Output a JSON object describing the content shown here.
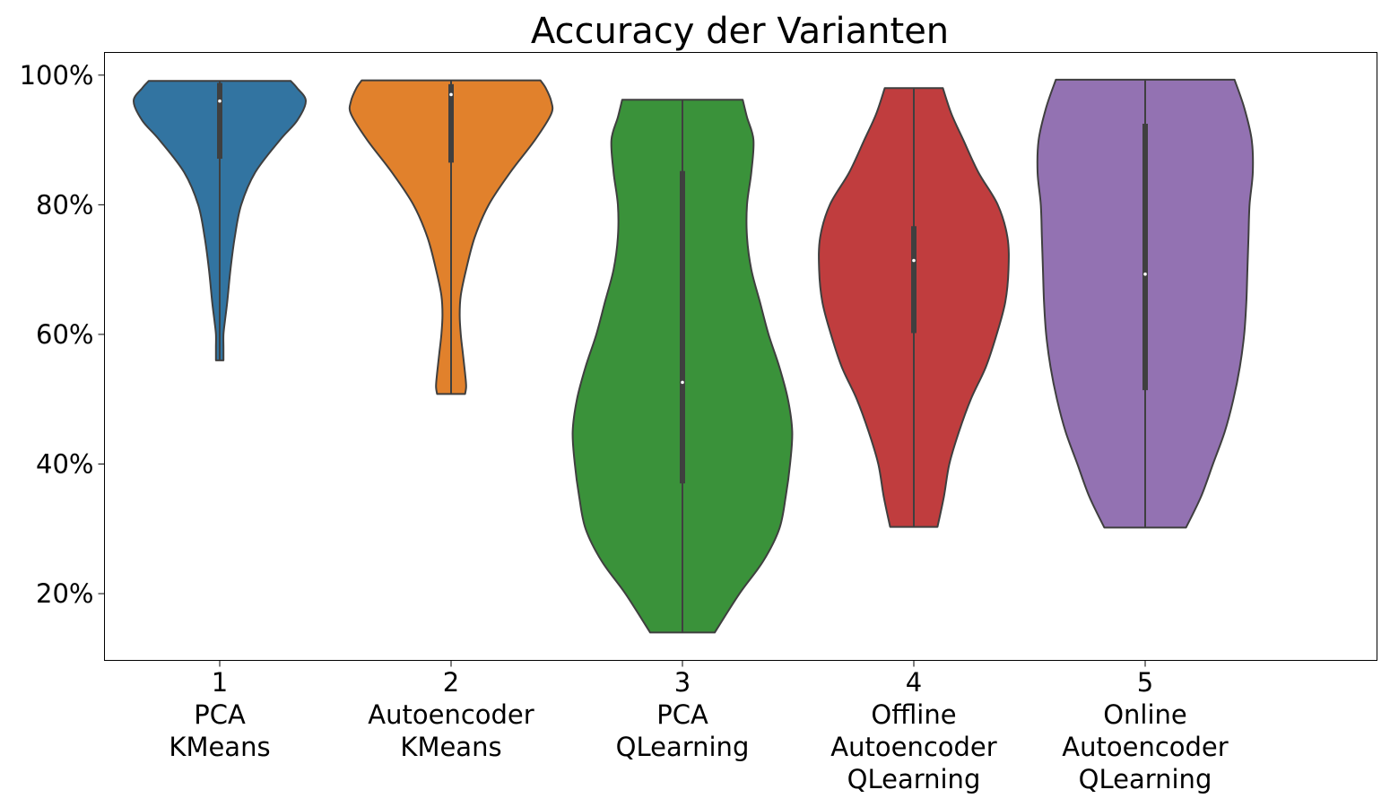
{
  "chart_data": {
    "type": "violin",
    "title": "Accuracy der Varianten",
    "xlabel": "",
    "ylabel": "",
    "ylim": [
      0.097,
      1.035
    ],
    "yticks": [
      0.2,
      0.4,
      0.6,
      0.8,
      1.0
    ],
    "ytick_labels": [
      "20%",
      "40%",
      "60%",
      "80%",
      "100%"
    ],
    "grid": false,
    "categories": [
      {
        "lines": [
          "1",
          "PCA",
          "KMeans"
        ]
      },
      {
        "lines": [
          "2",
          "Autoencoder",
          "KMeans"
        ]
      },
      {
        "lines": [
          "3",
          "PCA",
          "QLearning"
        ]
      },
      {
        "lines": [
          "4",
          "Offline",
          "Autoencoder",
          "QLearning"
        ]
      },
      {
        "lines": [
          "5",
          "Online",
          "Autoencoder",
          "QLearning"
        ]
      }
    ],
    "violins": [
      {
        "color": "#3274a1",
        "min": 0.56,
        "q1": 0.871,
        "median": 0.96,
        "q3": 0.988,
        "max": 0.991,
        "density": [
          [
            0.56,
            0.035
          ],
          [
            0.58,
            0.035
          ],
          [
            0.6,
            0.035
          ],
          [
            0.62,
            0.048
          ],
          [
            0.65,
            0.07
          ],
          [
            0.7,
            0.1
          ],
          [
            0.75,
            0.14
          ],
          [
            0.8,
            0.2
          ],
          [
            0.85,
            0.33
          ],
          [
            0.9,
            0.56
          ],
          [
            0.93,
            0.72
          ],
          [
            0.96,
            0.8
          ],
          [
            0.98,
            0.72
          ],
          [
            0.991,
            0.66
          ]
        ]
      },
      {
        "color": "#e1812c",
        "min": 0.508,
        "q1": 0.865,
        "median": 0.97,
        "q3": 0.986,
        "max": 0.992,
        "density": [
          [
            0.508,
            0.13
          ],
          [
            0.52,
            0.14
          ],
          [
            0.54,
            0.13
          ],
          [
            0.57,
            0.11
          ],
          [
            0.6,
            0.09
          ],
          [
            0.63,
            0.08
          ],
          [
            0.66,
            0.09
          ],
          [
            0.7,
            0.14
          ],
          [
            0.75,
            0.22
          ],
          [
            0.8,
            0.35
          ],
          [
            0.85,
            0.55
          ],
          [
            0.9,
            0.78
          ],
          [
            0.94,
            0.93
          ],
          [
            0.96,
            0.93
          ],
          [
            0.98,
            0.88
          ],
          [
            0.992,
            0.83
          ]
        ]
      },
      {
        "color": "#3a923a",
        "min": 0.14,
        "q1": 0.37,
        "median": 0.526,
        "q3": 0.852,
        "max": 0.962,
        "density": [
          [
            0.14,
            0.3
          ],
          [
            0.2,
            0.53
          ],
          [
            0.25,
            0.75
          ],
          [
            0.3,
            0.9
          ],
          [
            0.35,
            0.96
          ],
          [
            0.4,
            1.0
          ],
          [
            0.45,
            1.02
          ],
          [
            0.5,
            0.98
          ],
          [
            0.55,
            0.9
          ],
          [
            0.6,
            0.8
          ],
          [
            0.65,
            0.72
          ],
          [
            0.7,
            0.64
          ],
          [
            0.75,
            0.6
          ],
          [
            0.8,
            0.6
          ],
          [
            0.85,
            0.64
          ],
          [
            0.9,
            0.66
          ],
          [
            0.935,
            0.6
          ],
          [
            0.962,
            0.56
          ]
        ]
      },
      {
        "color": "#c03d3e",
        "min": 0.303,
        "q1": 0.602,
        "median": 0.714,
        "q3": 0.767,
        "max": 0.98,
        "density": [
          [
            0.303,
            0.22
          ],
          [
            0.35,
            0.28
          ],
          [
            0.4,
            0.33
          ],
          [
            0.45,
            0.42
          ],
          [
            0.5,
            0.53
          ],
          [
            0.55,
            0.67
          ],
          [
            0.6,
            0.77
          ],
          [
            0.65,
            0.85
          ],
          [
            0.7,
            0.88
          ],
          [
            0.75,
            0.87
          ],
          [
            0.8,
            0.78
          ],
          [
            0.85,
            0.6
          ],
          [
            0.9,
            0.46
          ],
          [
            0.94,
            0.35
          ],
          [
            0.98,
            0.27
          ]
        ]
      },
      {
        "color": "#9372b2",
        "min": 0.302,
        "q1": 0.514,
        "median": 0.693,
        "q3": 0.925,
        "max": 0.993,
        "density": [
          [
            0.302,
            0.38
          ],
          [
            0.35,
            0.52
          ],
          [
            0.4,
            0.63
          ],
          [
            0.45,
            0.74
          ],
          [
            0.5,
            0.82
          ],
          [
            0.55,
            0.88
          ],
          [
            0.6,
            0.92
          ],
          [
            0.65,
            0.94
          ],
          [
            0.7,
            0.95
          ],
          [
            0.75,
            0.96
          ],
          [
            0.8,
            0.97
          ],
          [
            0.85,
            1.0
          ],
          [
            0.9,
            0.99
          ],
          [
            0.95,
            0.92
          ],
          [
            0.993,
            0.83
          ]
        ]
      }
    ]
  }
}
